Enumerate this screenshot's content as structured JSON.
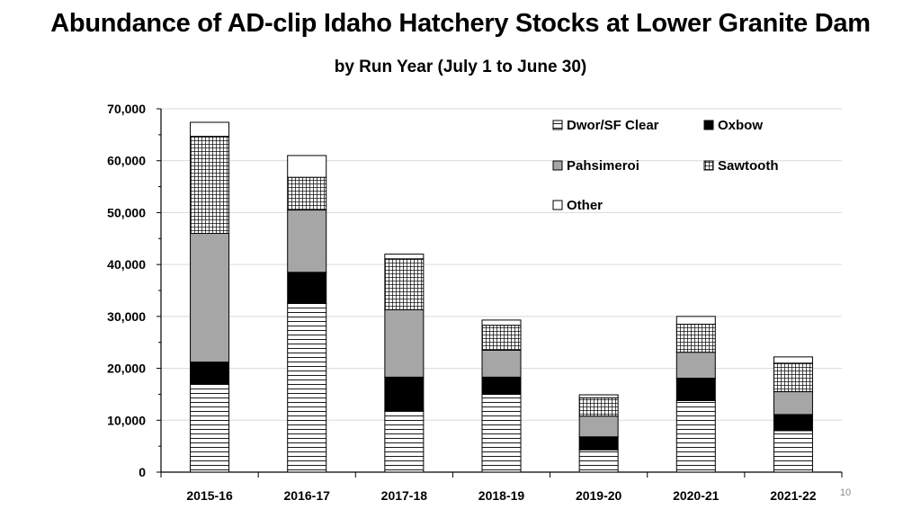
{
  "title": "Abundance of AD-clip Idaho Hatchery Stocks at Lower Granite Dam",
  "subtitle": "by Run Year (July 1 to June 30)",
  "page_number": "10",
  "chart_data": {
    "type": "bar",
    "stacked": true,
    "title": "Abundance of AD-clip Idaho Hatchery Stocks at Lower Granite Dam",
    "subtitle": "by Run Year (July 1 to June 30)",
    "xlabel": "",
    "ylabel": "",
    "categories": [
      "2015-16",
      "2016-17",
      "2017-18",
      "2018-19",
      "2019-20",
      "2020-21",
      "2021-22"
    ],
    "ylim": [
      0,
      70000
    ],
    "yticks": [
      0,
      10000,
      20000,
      30000,
      40000,
      50000,
      60000,
      70000
    ],
    "ytick_labels": [
      "0",
      "10,000",
      "20,000",
      "30,000",
      "40,000",
      "50,000",
      "60,000",
      "70,000"
    ],
    "grid": true,
    "legend_position": "top-right",
    "series": [
      {
        "name": "Dwor/SF Clear",
        "pattern": "horizontal-lines",
        "color": "#ffffff",
        "values": [
          17000,
          32500,
          11800,
          15000,
          4300,
          13800,
          8000
        ]
      },
      {
        "name": "Oxbow",
        "pattern": "solid",
        "color": "#000000",
        "values": [
          4200,
          6000,
          6500,
          3300,
          2500,
          4300,
          3100
        ]
      },
      {
        "name": "Pahsimeroi",
        "pattern": "solid",
        "color": "#a6a6a6",
        "values": [
          24800,
          12000,
          13000,
          5200,
          4000,
          5000,
          4400
        ]
      },
      {
        "name": "Sawtooth",
        "pattern": "grid",
        "color": "#ffffff",
        "values": [
          18700,
          6300,
          9800,
          4800,
          3500,
          5400,
          5500
        ]
      },
      {
        "name": "Other",
        "pattern": "solid",
        "color": "#ffffff",
        "values": [
          2700,
          4200,
          900,
          1000,
          600,
          1500,
          1200
        ]
      }
    ]
  }
}
